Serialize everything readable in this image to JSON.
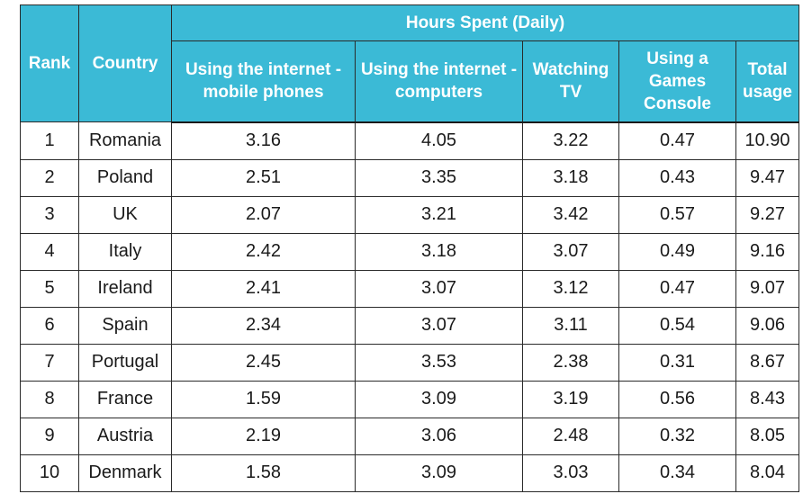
{
  "table": {
    "group_header": "Hours Spent (Daily)",
    "columns": {
      "rank": "Rank",
      "country": "Country",
      "mobile": "Using the internet - mobile phones",
      "computers": "Using the internet - computers",
      "tv": "Watching TV",
      "console": "Using a Games Console",
      "total": "Total usage"
    },
    "rows": [
      {
        "rank": "1",
        "country": "Romania",
        "mobile": "3.16",
        "computers": "4.05",
        "tv": "3.22",
        "console": "0.47",
        "total": "10.90"
      },
      {
        "rank": "2",
        "country": "Poland",
        "mobile": "2.51",
        "computers": "3.35",
        "tv": "3.18",
        "console": "0.43",
        "total": "9.47"
      },
      {
        "rank": "3",
        "country": "UK",
        "mobile": "2.07",
        "computers": "3.21",
        "tv": "3.42",
        "console": "0.57",
        "total": "9.27"
      },
      {
        "rank": "4",
        "country": "Italy",
        "mobile": "2.42",
        "computers": "3.18",
        "tv": "3.07",
        "console": "0.49",
        "total": "9.16"
      },
      {
        "rank": "5",
        "country": "Ireland",
        "mobile": "2.41",
        "computers": "3.07",
        "tv": "3.12",
        "console": "0.47",
        "total": "9.07"
      },
      {
        "rank": "6",
        "country": "Spain",
        "mobile": "2.34",
        "computers": "3.07",
        "tv": "3.11",
        "console": "0.54",
        "total": "9.06"
      },
      {
        "rank": "7",
        "country": "Portugal",
        "mobile": "2.45",
        "computers": "3.53",
        "tv": "2.38",
        "console": "0.31",
        "total": "8.67"
      },
      {
        "rank": "8",
        "country": "France",
        "mobile": "1.59",
        "computers": "3.09",
        "tv": "3.19",
        "console": "0.56",
        "total": "8.43"
      },
      {
        "rank": "9",
        "country": "Austria",
        "mobile": "2.19",
        "computers": "3.06",
        "tv": "2.48",
        "console": "0.32",
        "total": "8.05"
      },
      {
        "rank": "10",
        "country": "Denmark",
        "mobile": "1.58",
        "computers": "3.09",
        "tv": "3.03",
        "console": "0.34",
        "total": "8.04"
      }
    ]
  },
  "colors": {
    "header_background": "#3bbad6",
    "header_text": "#ffffff",
    "border": "#2a2a2a"
  }
}
